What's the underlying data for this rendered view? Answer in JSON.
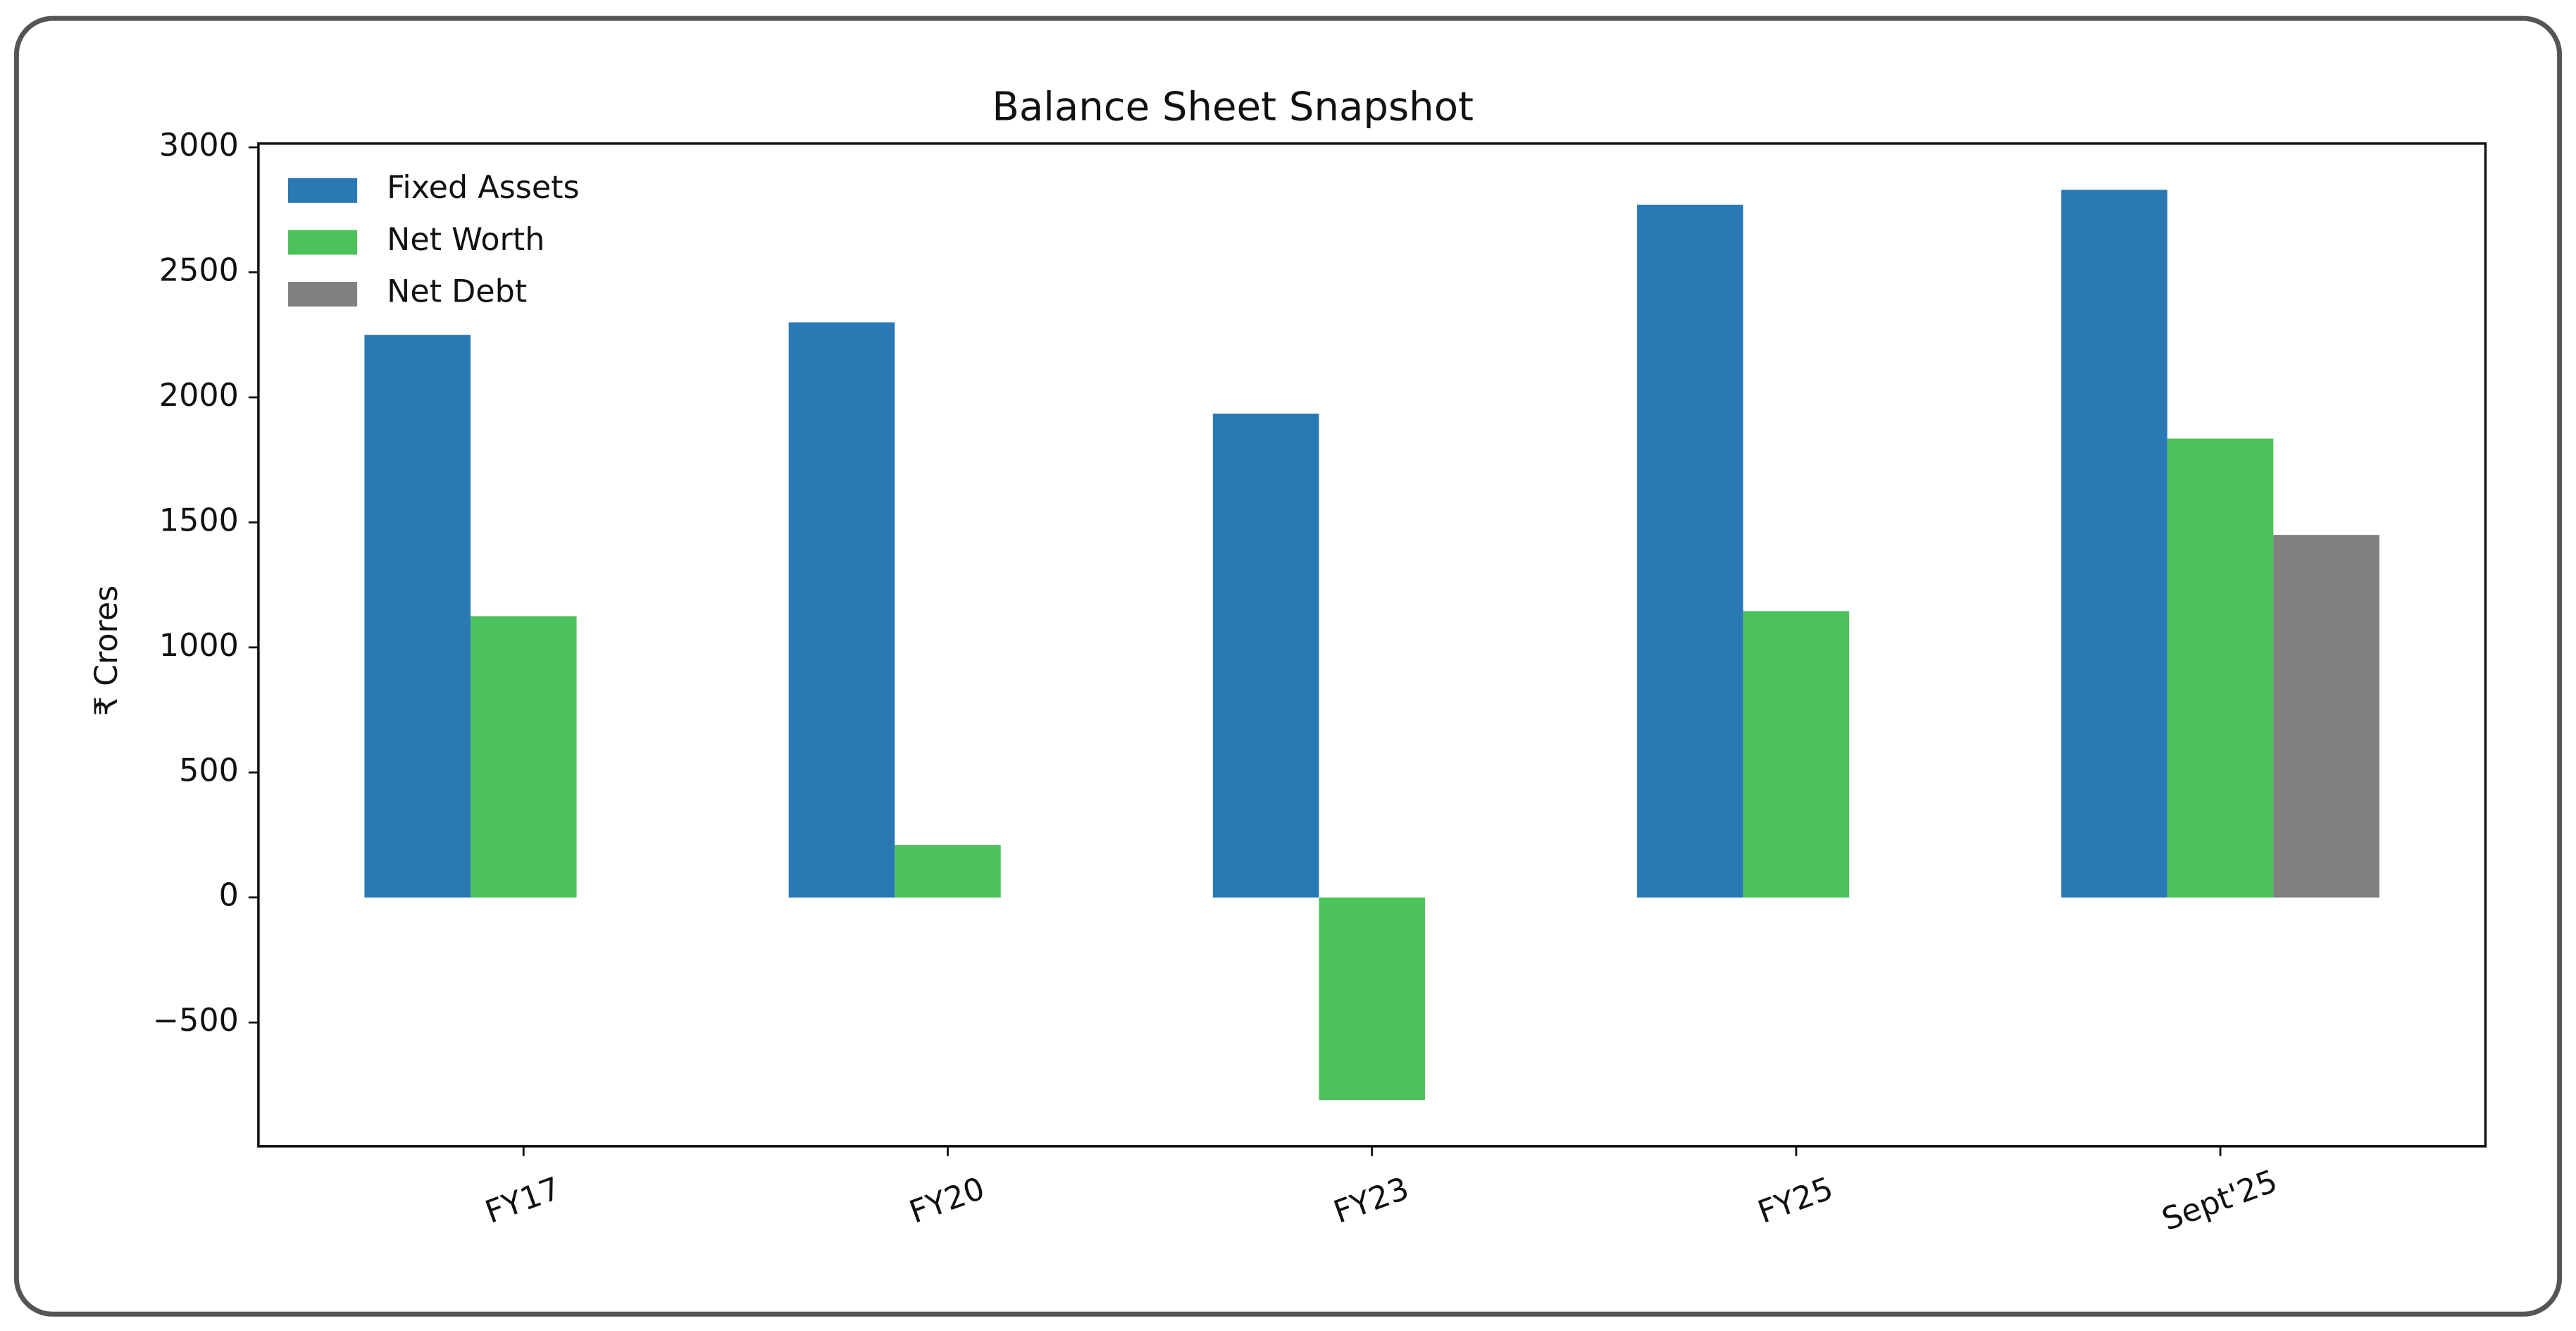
{
  "chart_data": {
    "type": "bar",
    "title": "Balance Sheet Snapshot",
    "y_label": "₹ Crores",
    "categories": [
      "FY17",
      "FY20",
      "FY23",
      "FY25",
      "Sept'25"
    ],
    "series": [
      {
        "name": "Fixed Assets",
        "color": "#2a78b4",
        "values": [
          2250,
          2300,
          1935,
          2770,
          2830
        ]
      },
      {
        "name": "Net Worth",
        "color": "#4cc25d",
        "values": [
          1125,
          210,
          -810,
          1145,
          1835
        ]
      },
      {
        "name": "Net Debt",
        "color": "#808080",
        "values": [
          null,
          null,
          null,
          null,
          1450
        ]
      }
    ],
    "ylim": [
      -995,
      3015
    ],
    "yticks": [
      {
        "value": -500,
        "label": "−500"
      },
      0,
      500,
      1000,
      1500,
      2000,
      2500,
      3000
    ],
    "legend": "upper left",
    "grid": false
  }
}
